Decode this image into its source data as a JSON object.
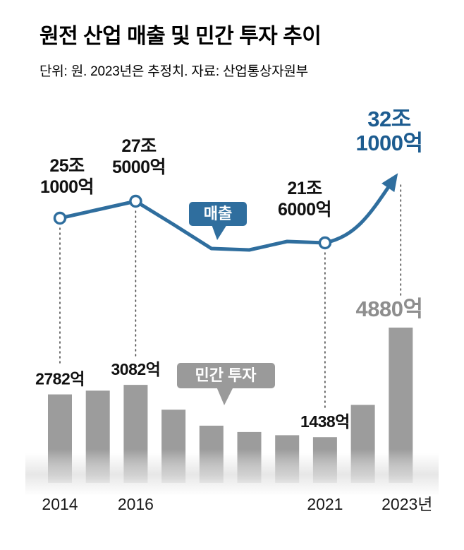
{
  "header": {
    "title": "원전 산업 매출 및 민간 투자 추이",
    "subtitle": "단위: 원. 2023년은 추정치. 자료: 산업통상자원부"
  },
  "colors": {
    "line": "#2f6e9e",
    "line_label_bg": "#2f6e9e",
    "line_highlight_text": "#1d5c90",
    "bar": "#9c9c9c",
    "bar_label_bg": "#9a9a9a",
    "bar_highlight_text": "#8e8e8e",
    "text": "#111111",
    "background": "#ffffff"
  },
  "chart_data": [
    {
      "type": "line",
      "name": "매출",
      "unit": "조 원",
      "x": [
        2014,
        2015,
        2016,
        2017,
        2018,
        2019,
        2020,
        2021,
        2022,
        2023
      ],
      "values": [
        25.1,
        26.3,
        27.5,
        24.2,
        20.8,
        20.6,
        21.8,
        21.6,
        25.5,
        32.1
      ],
      "ylim": [
        20,
        33
      ],
      "labeled_points": [
        {
          "x": 2014,
          "value_text": "25조 1000억",
          "label": [
            "25조",
            "1000억"
          ]
        },
        {
          "x": 2016,
          "value_text": "27조 5000억",
          "label": [
            "27조",
            "5000억"
          ]
        },
        {
          "x": 2021,
          "value_text": "21조 6000억",
          "label": [
            "21조",
            "6000억"
          ]
        },
        {
          "x": 2023,
          "value_text": "32조 1000억",
          "label": [
            "32조",
            "1000억"
          ],
          "highlight": true
        }
      ],
      "note": "2023년은 추정치"
    },
    {
      "type": "bar",
      "name": "민간 투자",
      "unit": "억 원",
      "x": [
        2014,
        2015,
        2016,
        2017,
        2018,
        2019,
        2020,
        2021,
        2022,
        2023
      ],
      "values": [
        2782,
        2900,
        3082,
        2300,
        1800,
        1600,
        1500,
        1438,
        2450,
        4880
      ],
      "ylim": [
        0,
        5000
      ],
      "labeled_points": [
        {
          "x": 2014,
          "label": "2782억"
        },
        {
          "x": 2016,
          "label": "3082억"
        },
        {
          "x": 2021,
          "label": "1438억"
        },
        {
          "x": 2023,
          "label": "4880억",
          "highlight": true
        }
      ]
    }
  ],
  "x_ticks": [
    {
      "year": 2014,
      "label": "2014"
    },
    {
      "year": 2016,
      "label": "2016"
    },
    {
      "year": 2021,
      "label": "2021"
    },
    {
      "year": 2023,
      "label": "2023년"
    }
  ]
}
